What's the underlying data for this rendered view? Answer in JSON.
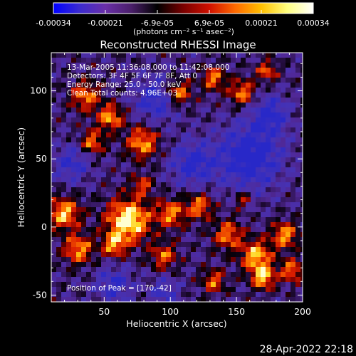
{
  "colorbar": {
    "tick_labels": [
      "-0.00034",
      "-0.00021",
      "-6.9e-05",
      "6.9e-05",
      "0.00021",
      "0.00034"
    ],
    "unit_label": "(photons cm⁻² s⁻¹ asec⁻²)",
    "range": [
      -0.00034,
      0.00034
    ],
    "colors": [
      "#0000ff",
      "#3b2bd0",
      "#6a2fa8",
      "#4a1f6a",
      "#000000",
      "#7a0000",
      "#d01000",
      "#ff6a00",
      "#ffc000",
      "#ffff80",
      "#ffffff"
    ]
  },
  "chart_data": {
    "type": "heatmap",
    "title": "Reconstructed RHESSI Image",
    "xlabel": "Heliocentric X (arcsec)",
    "ylabel": "Heliocentric Y (arcsec)",
    "xlim": [
      10,
      200
    ],
    "ylim": [
      -55,
      128
    ],
    "x_ticks": [
      50,
      100,
      150,
      200
    ],
    "y_ticks": [
      -50,
      0,
      50,
      100
    ],
    "annotations": [
      "13-Mar-2005 11:36:08.000 to 11:42:08.000",
      "Detectors: 3F 4F 5F 6F 7F 8F, Att 0",
      "Energy Range: 25.0 - 50.0 keV",
      "Clean     Total counts: 4.96E+03"
    ],
    "peak_label": "Position of Peak = [170,-42]",
    "peak_position": [
      170,
      -42
    ],
    "value_unit": "photons cm⁻² s⁻¹ asec⁻²"
  },
  "timestamp": "28-Apr-2022 22:18"
}
